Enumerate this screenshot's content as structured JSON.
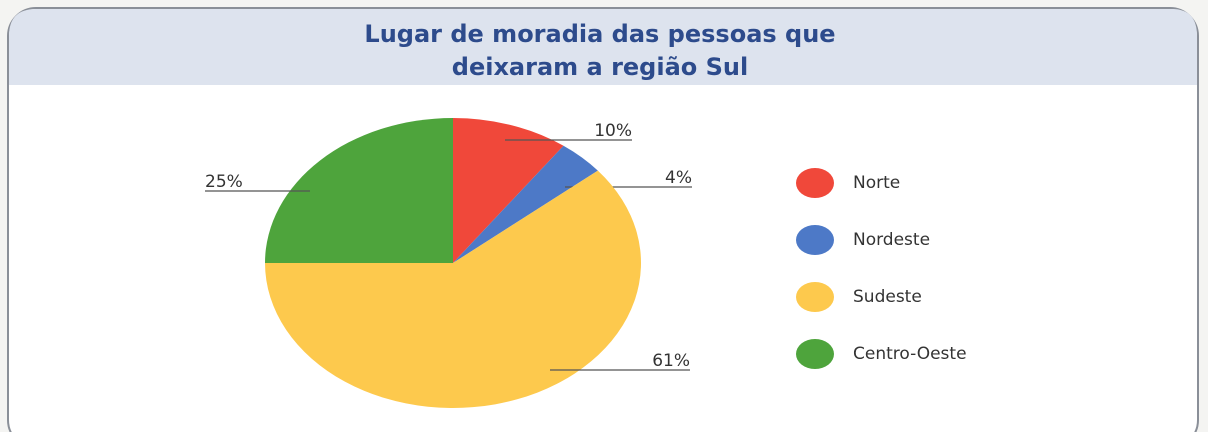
{
  "chart_data": {
    "type": "pie",
    "title": [
      "Lugar de moradia das pessoas que",
      "deixaram a região Sul"
    ],
    "categories": [
      "Norte",
      "Nordeste",
      "Sudeste",
      "Centro-Oeste"
    ],
    "values": [
      10,
      4,
      61,
      25
    ],
    "value_labels": [
      "10%",
      "4%",
      "61%",
      "25%"
    ],
    "colors": [
      "#f0483a",
      "#4d79c7",
      "#fdc94d",
      "#4ea43c"
    ],
    "legend": "right"
  }
}
